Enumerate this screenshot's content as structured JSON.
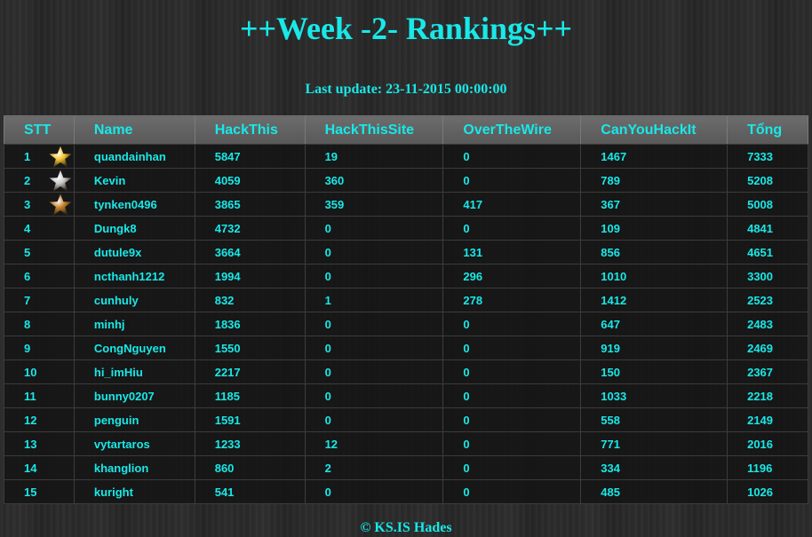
{
  "header": {
    "title": "++Week -2- Rankings++",
    "last_update_label": "Last update:",
    "last_update_value": "23-11-2015 00:00:00"
  },
  "table": {
    "columns": [
      "STT",
      "Name",
      "HackThis",
      "HackThisSite",
      "OverTheWire",
      "CanYouHackIt",
      "Tổng"
    ],
    "rows": [
      {
        "stt": "1",
        "medal": "gold-star-icon",
        "name": "quandainhan",
        "hackthis": "5847",
        "hackthissite": "19",
        "overthewire": "0",
        "canyouhackit": "1467",
        "tong": "7333"
      },
      {
        "stt": "2",
        "medal": "silver-star-icon",
        "name": "Kevin",
        "hackthis": "4059",
        "hackthissite": "360",
        "overthewire": "0",
        "canyouhackit": "789",
        "tong": "5208"
      },
      {
        "stt": "3",
        "medal": "bronze-star-icon",
        "name": "tynken0496",
        "hackthis": "3865",
        "hackthissite": "359",
        "overthewire": "417",
        "canyouhackit": "367",
        "tong": "5008"
      },
      {
        "stt": "4",
        "medal": "",
        "name": "Dungk8",
        "hackthis": "4732",
        "hackthissite": "0",
        "overthewire": "0",
        "canyouhackit": "109",
        "tong": "4841"
      },
      {
        "stt": "5",
        "medal": "",
        "name": "dutule9x",
        "hackthis": "3664",
        "hackthissite": "0",
        "overthewire": "131",
        "canyouhackit": "856",
        "tong": "4651"
      },
      {
        "stt": "6",
        "medal": "",
        "name": "ncthanh1212",
        "hackthis": "1994",
        "hackthissite": "0",
        "overthewire": "296",
        "canyouhackit": "1010",
        "tong": "3300"
      },
      {
        "stt": "7",
        "medal": "",
        "name": "cunhuly",
        "hackthis": "832",
        "hackthissite": "1",
        "overthewire": "278",
        "canyouhackit": "1412",
        "tong": "2523"
      },
      {
        "stt": "8",
        "medal": "",
        "name": "minhj",
        "hackthis": "1836",
        "hackthissite": "0",
        "overthewire": "0",
        "canyouhackit": "647",
        "tong": "2483"
      },
      {
        "stt": "9",
        "medal": "",
        "name": "CongNguyen",
        "hackthis": "1550",
        "hackthissite": "0",
        "overthewire": "0",
        "canyouhackit": "919",
        "tong": "2469"
      },
      {
        "stt": "10",
        "medal": "",
        "name": "hi_imHiu",
        "hackthis": "2217",
        "hackthissite": "0",
        "overthewire": "0",
        "canyouhackit": "150",
        "tong": "2367"
      },
      {
        "stt": "11",
        "medal": "",
        "name": "bunny0207",
        "hackthis": "1185",
        "hackthissite": "0",
        "overthewire": "0",
        "canyouhackit": "1033",
        "tong": "2218"
      },
      {
        "stt": "12",
        "medal": "",
        "name": "penguin",
        "hackthis": "1591",
        "hackthissite": "0",
        "overthewire": "0",
        "canyouhackit": "558",
        "tong": "2149"
      },
      {
        "stt": "13",
        "medal": "",
        "name": "vytartaros",
        "hackthis": "1233",
        "hackthissite": "12",
        "overthewire": "0",
        "canyouhackit": "771",
        "tong": "2016"
      },
      {
        "stt": "14",
        "medal": "",
        "name": "khanglion",
        "hackthis": "860",
        "hackthissite": "2",
        "overthewire": "0",
        "canyouhackit": "334",
        "tong": "1196"
      },
      {
        "stt": "15",
        "medal": "",
        "name": "kuright",
        "hackthis": "541",
        "hackthissite": "0",
        "overthewire": "0",
        "canyouhackit": "485",
        "tong": "1026"
      }
    ]
  },
  "footer": {
    "text": "© KS.IS Hades"
  },
  "colors": {
    "accent": "#19e8e8",
    "header_bg": "#636363",
    "row_bg": "#171717",
    "gold": "#f2c42c",
    "silver": "#c9c9c9",
    "bronze": "#c9822a"
  }
}
